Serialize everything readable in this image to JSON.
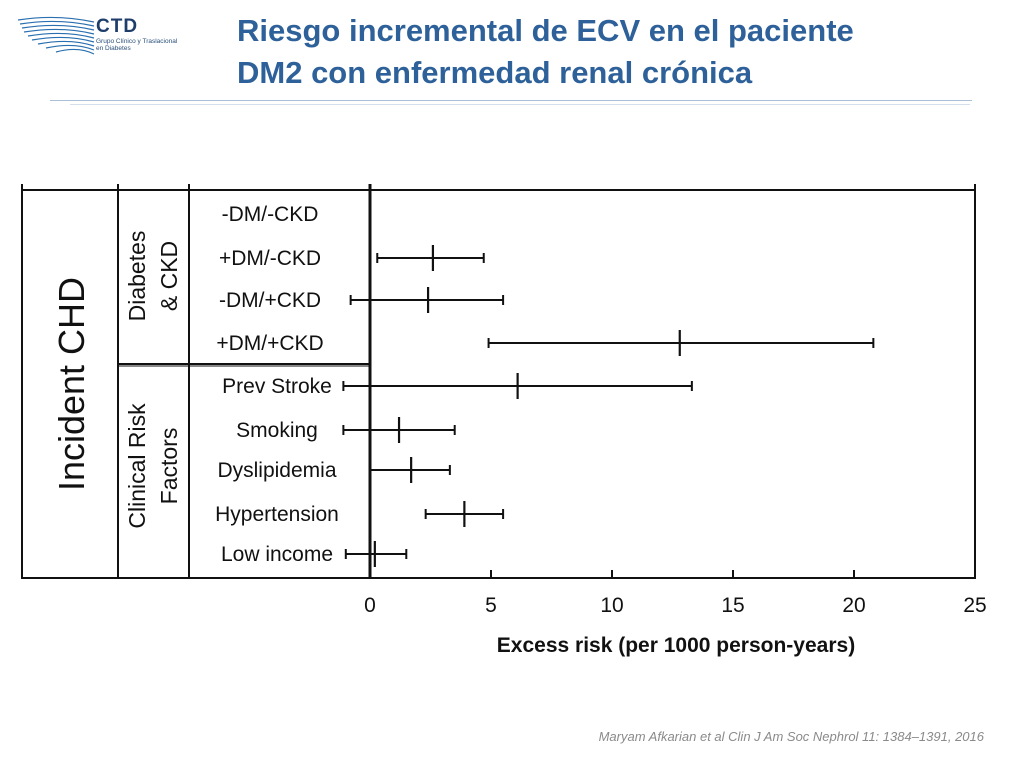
{
  "header": {
    "logo_name": "CTD",
    "logo_subtitle_1": "Grupo Clínico y Traslacional",
    "logo_subtitle_2": "en Diabetes",
    "title_line1": "Riesgo incremental de ECV en el paciente",
    "title_line2": "DM2 con enfermedad renal crónica"
  },
  "citation": "Maryam Afkarian et al Clin J Am Soc Nephrol 11: 1384–1391, 2016",
  "colors": {
    "title": "#2e6199",
    "chart_ink": "#111111"
  },
  "chart_data": {
    "type": "forest",
    "outcome_label": "Incident CHD",
    "xlabel": "Excess risk (per 1000 person-years)",
    "xlim": [
      0,
      25
    ],
    "xticks": [
      0,
      5,
      10,
      15,
      20,
      25
    ],
    "groups": [
      {
        "label_line1": "Diabetes",
        "label_line2": "& CKD",
        "rows": [
          {
            "label": "-DM/-CKD",
            "point": null,
            "low": null,
            "high": null
          },
          {
            "label": "+DM/-CKD",
            "point": 2.6,
            "low": 0.3,
            "high": 4.7
          },
          {
            "label": "-DM/+CKD",
            "point": 2.4,
            "low": -0.8,
            "high": 5.5
          },
          {
            "label": "+DM/+CKD",
            "point": 12.8,
            "low": 4.9,
            "high": 20.8
          }
        ]
      },
      {
        "label_line1": "Clinical Risk",
        "label_line2": "Factors",
        "rows": [
          {
            "label": "Prev Stroke",
            "point": 6.1,
            "low": -1.1,
            "high": 13.3
          },
          {
            "label": "Smoking",
            "point": 1.2,
            "low": -1.1,
            "high": 3.5
          },
          {
            "label": "Dyslipidemia",
            "point": 1.7,
            "low": 0.0,
            "high": 3.3
          },
          {
            "label": "Hypertension",
            "point": 3.9,
            "low": 2.3,
            "high": 5.5
          },
          {
            "label": "Low income",
            "point": 0.2,
            "low": -1.0,
            "high": 1.5
          }
        ]
      }
    ]
  }
}
